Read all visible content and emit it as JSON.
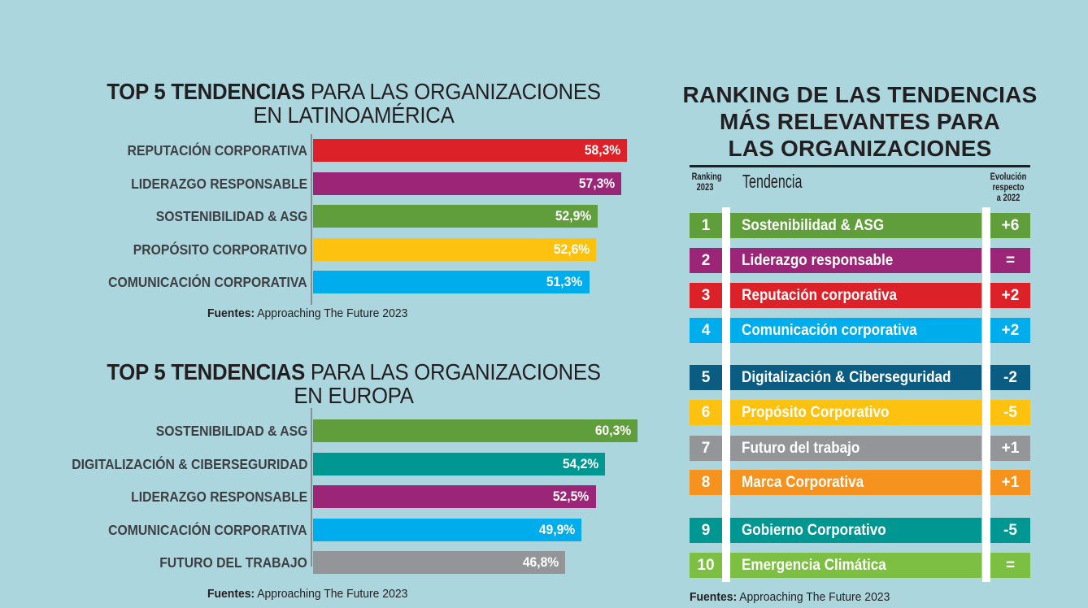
{
  "colors": {
    "background": "#acd6de",
    "red": "#dd2128",
    "purple": "#9b2577",
    "green": "#5f9e3a",
    "yellow": "#fdc20f",
    "light_blue": "#00adec",
    "teal": "#009691",
    "gray": "#939598",
    "dark_blue": "#0b5c82",
    "orange": "#f6921e",
    "lime": "#7cbf42"
  },
  "chart_data": [
    {
      "type": "bar",
      "orientation": "horizontal",
      "title_bold": "TOP 5 TENDENCIAS",
      "title_rest": "PARA LAS ORGANIZACIONES",
      "title_line2": "EN LATINOAMÉRICA",
      "categories": [
        "REPUTACIÓN CORPORATIVA",
        "LIDERAZGO RESPONSABLE",
        "SOSTENIBILIDAD & ASG",
        "PROPÓSITO CORPORATIVO",
        "COMUNICACIÓN CORPORATIVA"
      ],
      "values": [
        58.3,
        57.3,
        52.9,
        52.6,
        51.3
      ],
      "value_labels": [
        "58,3%",
        "57,3%",
        "52,9%",
        "52,6%",
        "51,3%"
      ],
      "bar_colors": [
        "#dd2128",
        "#9b2577",
        "#5f9e3a",
        "#fdc20f",
        "#00adec"
      ],
      "unit": "%",
      "xlim": [
        0,
        60.3
      ],
      "grid": false,
      "source_label": "Fuentes:",
      "source_text": "Approaching The Future 2023"
    },
    {
      "type": "bar",
      "orientation": "horizontal",
      "title_bold": "TOP 5 TENDENCIAS",
      "title_rest": "PARA LAS ORGANIZACIONES",
      "title_line2": "EN EUROPA",
      "categories": [
        "SOSTENIBILIDAD & ASG",
        "DIGITALIZACIÓN & CIBERSEGURIDAD",
        "LIDERAZGO RESPONSABLE",
        "COMUNICACIÓN CORPORATIVA",
        "FUTURO DEL TRABAJO"
      ],
      "values": [
        60.3,
        54.2,
        52.5,
        49.9,
        46.8
      ],
      "value_labels": [
        "60,3%",
        "54,2%",
        "52,5%",
        "49,9%",
        "46,8%"
      ],
      "bar_colors": [
        "#5f9e3a",
        "#009691",
        "#9b2577",
        "#00adec",
        "#939598"
      ],
      "unit": "%",
      "xlim": [
        0,
        60.3
      ],
      "grid": false,
      "source_label": "Fuentes:",
      "source_text": "Approaching The Future 2023"
    },
    {
      "type": "table",
      "title_lines": [
        "RANKING DE LAS TENDENCIAS",
        "MÁS RELEVANTES PARA",
        "LAS ORGANIZACIONES"
      ],
      "headers": {
        "rank_line1": "Ranking",
        "rank_line2": "2023",
        "trend": "Tendencia",
        "evo_line1": "Evolución",
        "evo_line2": "respecto",
        "evo_line3": "a 2022"
      },
      "rows": [
        {
          "rank": "1",
          "name": "Sostenibilidad & ASG",
          "evolution": "+6",
          "color": "#5f9e3a"
        },
        {
          "rank": "2",
          "name": "Liderazgo responsable",
          "evolution": "=",
          "color": "#9b2577"
        },
        {
          "rank": "3",
          "name": "Reputación corporativa",
          "evolution": "+2",
          "color": "#dd2128"
        },
        {
          "rank": "4",
          "name": "Comunicación corporativa",
          "evolution": "+2",
          "color": "#00adec"
        },
        {
          "rank": "5",
          "name": "Digitalización & Ciberseguridad",
          "evolution": "-2",
          "color": "#0b5c82"
        },
        {
          "rank": "6",
          "name": "Propósito Corporativo",
          "evolution": "-5",
          "color": "#fdc20f"
        },
        {
          "rank": "7",
          "name": "Futuro del trabajo",
          "evolution": "+1",
          "color": "#939598"
        },
        {
          "rank": "8",
          "name": "Marca Corporativa",
          "evolution": "+1",
          "color": "#f6921e"
        },
        {
          "rank": "9",
          "name": "Gobierno Corporativo",
          "evolution": "-5",
          "color": "#009691"
        },
        {
          "rank": "10",
          "name": "Emergencia Climática",
          "evolution": "=",
          "color": "#7cbf42"
        }
      ],
      "source_label": "Fuentes:",
      "source_text": "Approaching The Future 2023"
    }
  ]
}
